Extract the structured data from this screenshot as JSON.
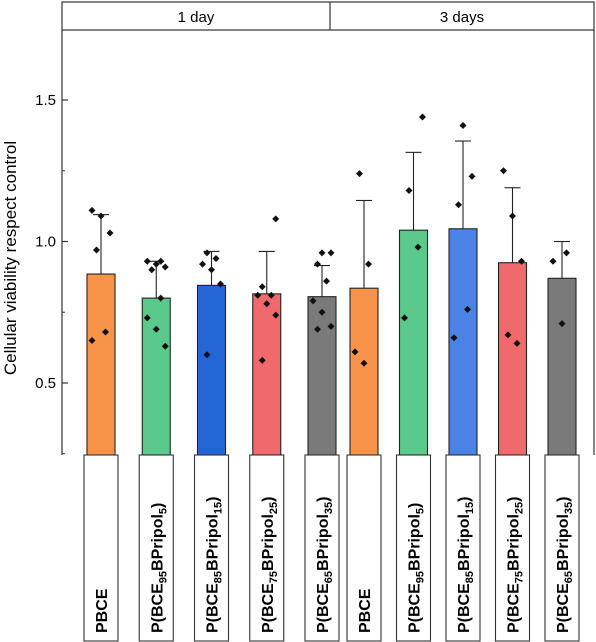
{
  "chart_data": {
    "type": "bar",
    "ylabel": "Cellular viability respect control",
    "ylim": [
      0.25,
      1.75
    ],
    "yticks": [
      "0.5",
      "1.0",
      "1.5"
    ],
    "ytick_values": [
      0.5,
      1.0,
      1.5
    ],
    "error_bars": "upper",
    "grid": false,
    "panels": [
      {
        "title": "1 day",
        "bars": [
          {
            "label": "PBCE",
            "value": 0.885,
            "error": 0.21,
            "color": "#f7944a",
            "points": [
              1.11,
              1.09,
              1.03,
              0.97,
              0.68,
              0.65
            ]
          },
          {
            "label": "P(BCE95BPripol5)",
            "value": 0.8,
            "error": 0.13,
            "color": "#5cc98c",
            "points": [
              0.93,
              0.93,
              0.92,
              0.91,
              0.9,
              0.8,
              0.73,
              0.69,
              0.63
            ]
          },
          {
            "label": "P(BCE85BPripol15)",
            "value": 0.845,
            "error": 0.12,
            "color": "#2466d6",
            "points": [
              0.96,
              0.94,
              0.92,
              0.9,
              0.85,
              0.6
            ]
          },
          {
            "label": "P(BCE75BPripol25)",
            "value": 0.815,
            "error": 0.15,
            "color": "#f0696c",
            "points": [
              1.08,
              0.84,
              0.81,
              0.81,
              0.78,
              0.74,
              0.58
            ]
          },
          {
            "label": "P(BCE65BPripol35)",
            "value": 0.805,
            "error": 0.11,
            "color": "#7a7a7a",
            "points": [
              0.96,
              0.96,
              0.92,
              0.86,
              0.79,
              0.75,
              0.7,
              0.69
            ]
          }
        ]
      },
      {
        "title": "3 days",
        "bars": [
          {
            "label": "PBCE",
            "value": 0.835,
            "error": 0.31,
            "color": "#f7944a",
            "points": [
              1.24,
              0.92,
              0.61,
              0.57
            ]
          },
          {
            "label": "P(BCE95BPripol5)",
            "value": 1.04,
            "error": 0.275,
            "color": "#5cc98c",
            "points": [
              1.44,
              1.18,
              0.98,
              0.73
            ]
          },
          {
            "label": "P(BCE85BPripol15)",
            "value": 1.045,
            "error": 0.31,
            "color": "#4a82e6",
            "points": [
              1.41,
              1.23,
              1.13,
              0.76,
              0.66
            ]
          },
          {
            "label": "P(BCE75BPripol25)",
            "value": 0.925,
            "error": 0.265,
            "color": "#f0696c",
            "points": [
              1.25,
              1.09,
              0.93,
              0.67,
              0.64
            ]
          },
          {
            "label": "P(BCE65BPripol35)",
            "value": 0.87,
            "error": 0.13,
            "color": "#7a7a7a",
            "points": [
              0.96,
              0.93,
              0.71
            ]
          }
        ]
      }
    ]
  },
  "tick_labels": [
    {
      "prefix": "PBCE",
      "sub1": "",
      "mid": "",
      "sub2": "",
      "suffix": ""
    },
    {
      "prefix": "P(BCE",
      "sub1": "95",
      "mid": "BPripol",
      "sub2": "5",
      "suffix": ")"
    },
    {
      "prefix": "P(BCE",
      "sub1": "85",
      "mid": "BPripol",
      "sub2": "15",
      "suffix": ")"
    },
    {
      "prefix": "P(BCE",
      "sub1": "75",
      "mid": "BPripol",
      "sub2": "25",
      "suffix": ")"
    },
    {
      "prefix": "P(BCE",
      "sub1": "65",
      "mid": "BPripol",
      "sub2": "35",
      "suffix": ")"
    }
  ]
}
